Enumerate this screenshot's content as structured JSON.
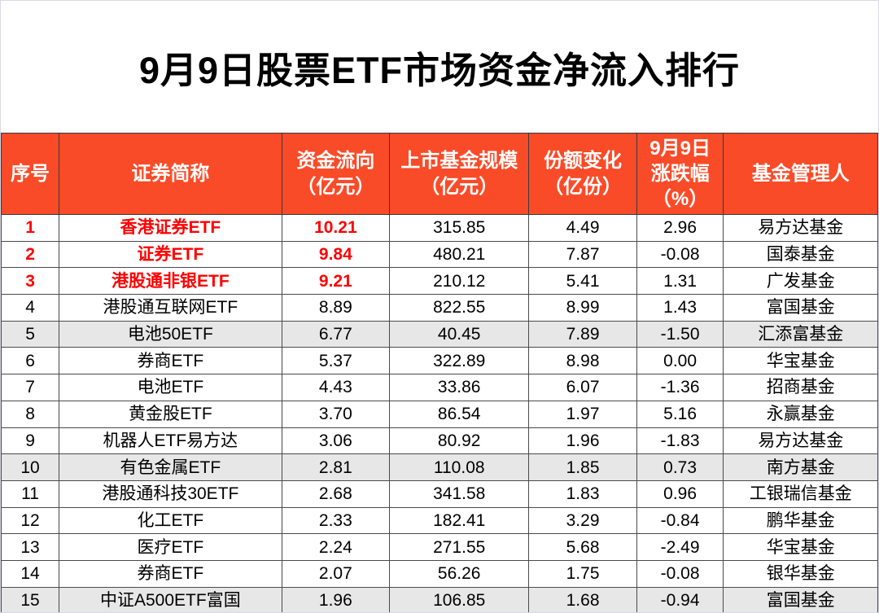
{
  "title": "9月9日股票ETF市场资金净流入排行",
  "colors": {
    "header_bg": "#FA4B28",
    "header_text": "#FFFFFF",
    "top3_text": "#FF0000",
    "stripe_bg": "#E7E7E7",
    "grid_line": "#4A4A4A"
  },
  "chart_data": {
    "type": "table",
    "title": "9月9日股票ETF市场资金净流入排行",
    "columns": [
      "序号",
      "证券简称",
      "资金流向\n（亿元）",
      "上市基金规模\n（亿元）",
      "份额变化\n（亿份）",
      "9月9日\n涨跌幅\n（%）",
      "基金管理人"
    ],
    "col_widths_pct": [
      6.6,
      25.4,
      12.3,
      15.9,
      12.3,
      9.9,
      17.6
    ],
    "rows": [
      [
        "1",
        "香港证券ETF",
        "10.21",
        "315.85",
        "4.49",
        "2.96",
        "易方达基金"
      ],
      [
        "2",
        "证券ETF",
        "9.84",
        "480.21",
        "7.87",
        "-0.08",
        "国泰基金"
      ],
      [
        "3",
        "港股通非银ETF",
        "9.21",
        "210.12",
        "5.41",
        "1.31",
        "广发基金"
      ],
      [
        "4",
        "港股通互联网ETF",
        "8.89",
        "822.55",
        "8.99",
        "1.43",
        "富国基金"
      ],
      [
        "5",
        "电池50ETF",
        "6.77",
        "40.45",
        "7.89",
        "-1.50",
        "汇添富基金"
      ],
      [
        "6",
        "券商ETF",
        "5.37",
        "322.89",
        "8.98",
        "0.00",
        "华宝基金"
      ],
      [
        "7",
        "电池ETF",
        "4.43",
        "33.86",
        "6.07",
        "-1.36",
        "招商基金"
      ],
      [
        "8",
        "黄金股ETF",
        "3.70",
        "86.54",
        "1.97",
        "5.16",
        "永赢基金"
      ],
      [
        "9",
        "机器人ETF易方达",
        "3.06",
        "80.92",
        "1.96",
        "-1.83",
        "易方达基金"
      ],
      [
        "10",
        "有色金属ETF",
        "2.81",
        "110.08",
        "1.85",
        "0.73",
        "南方基金"
      ],
      [
        "11",
        "港股通科技30ETF",
        "2.68",
        "341.58",
        "1.83",
        "0.96",
        "工银瑞信基金"
      ],
      [
        "12",
        "化工ETF",
        "2.33",
        "182.41",
        "3.29",
        "-0.84",
        "鹏华基金"
      ],
      [
        "13",
        "医疗ETF",
        "2.24",
        "271.55",
        "5.68",
        "-2.49",
        "华宝基金"
      ],
      [
        "14",
        "券商ETF",
        "2.07",
        "56.26",
        "1.75",
        "-0.08",
        "银华基金"
      ],
      [
        "15",
        "中证A500ETF富国",
        "1.96",
        "106.85",
        "1.68",
        "-0.94",
        "富国基金"
      ]
    ],
    "highlighted_rows": [
      0,
      1,
      2
    ],
    "highlighted_columns": [
      0,
      1,
      2
    ],
    "shaded_rows": [
      4,
      9,
      14
    ]
  }
}
